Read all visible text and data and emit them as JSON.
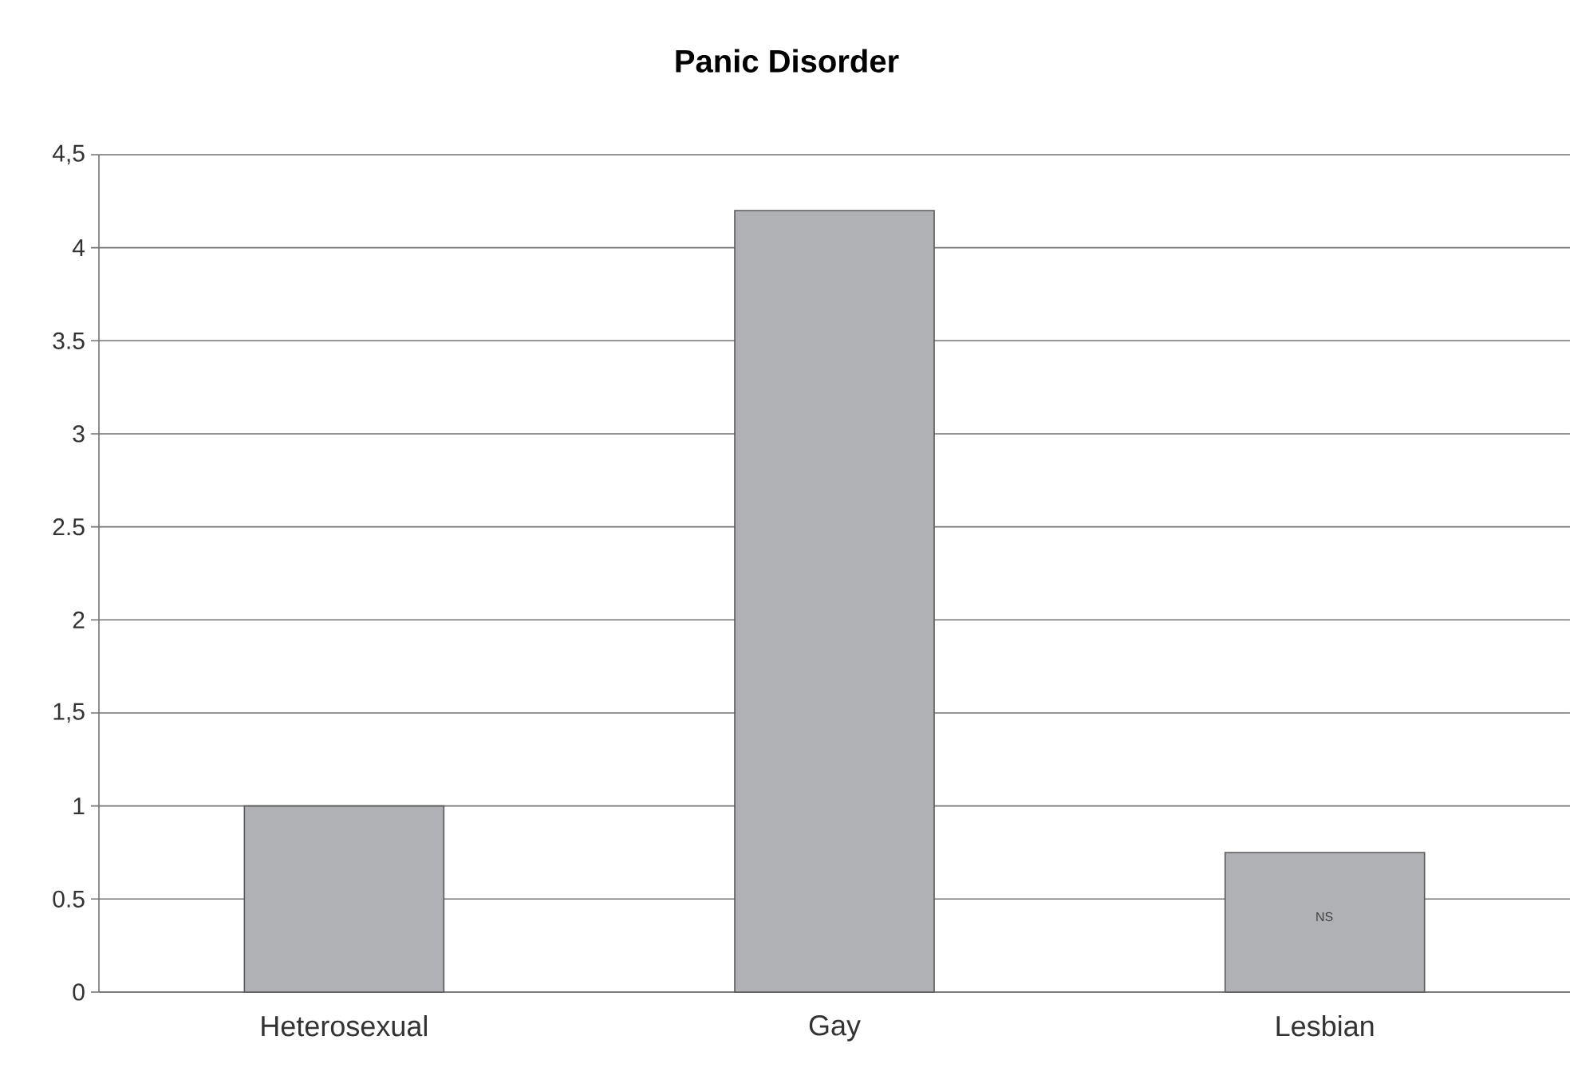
{
  "chart_data": {
    "type": "bar",
    "title": "Panic Disorder",
    "categories": [
      "Heterosexual",
      "Gay",
      "Lesbian"
    ],
    "values": [
      1.0,
      4.2,
      0.75
    ],
    "color": "#b0b1b5",
    "ylim": [
      0,
      4.5
    ],
    "yticks": [
      0,
      0.5,
      1,
      {
        "value": 1.5,
        "label": "1,5"
      },
      2,
      2.5,
      3,
      3.5,
      4,
      {
        "value": 4.5,
        "label": "4,5"
      }
    ],
    "grid": "y",
    "annotations": [
      "NS"
    ]
  }
}
